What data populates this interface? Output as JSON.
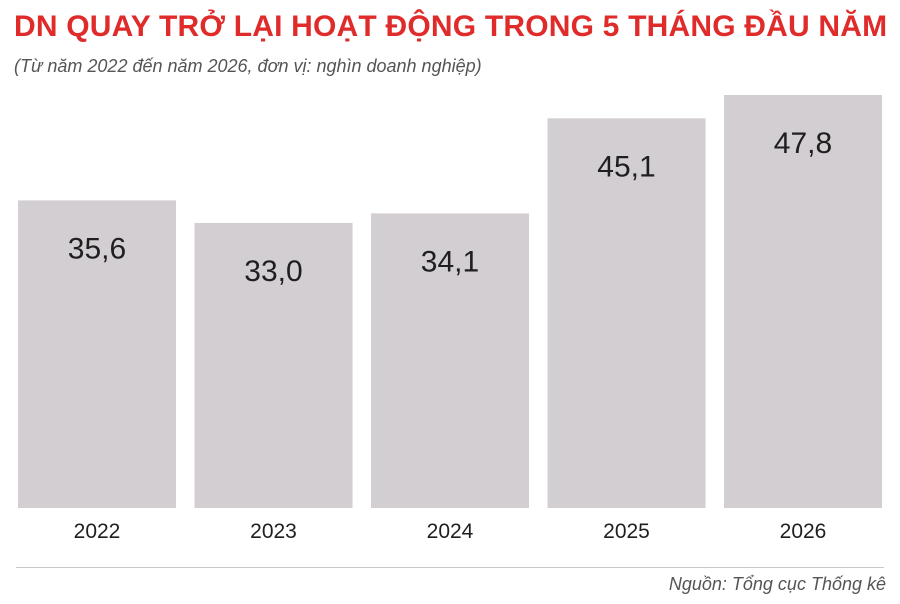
{
  "title": "DN QUAY TRỞ LẠI HOẠT ĐỘNG TRONG 5 THÁNG ĐẦU NĂM",
  "subtitle": "(Từ năm 2022 đến năm 2026, đơn vị: nghìn doanh nghiệp)",
  "source": "Nguồn: Tổng cục Thống kê",
  "colors": {
    "title": "#e02b2b",
    "bar": "#d2ced1",
    "text": "#1f1f1f",
    "muted": "#555555"
  },
  "chart_data": {
    "type": "bar",
    "categories": [
      "2022",
      "2023",
      "2024",
      "2025",
      "2026"
    ],
    "values": [
      35.6,
      33.0,
      34.1,
      45.1,
      47.8
    ],
    "data_labels": [
      "35,6",
      "33,0",
      "34,1",
      "45,1",
      "47,8"
    ],
    "title": "DN QUAY TRỞ LẠI HOẠT ĐỘNG TRONG 5 THÁNG ĐẦU NĂM",
    "subtitle": "(Từ năm 2022 đến năm 2026, đơn vị: nghìn doanh nghiệp)",
    "xlabel": "",
    "ylabel": "",
    "ylim": [
      0,
      47.8
    ],
    "grid": false,
    "legend": "none",
    "data_label_placement": "inside-top"
  }
}
